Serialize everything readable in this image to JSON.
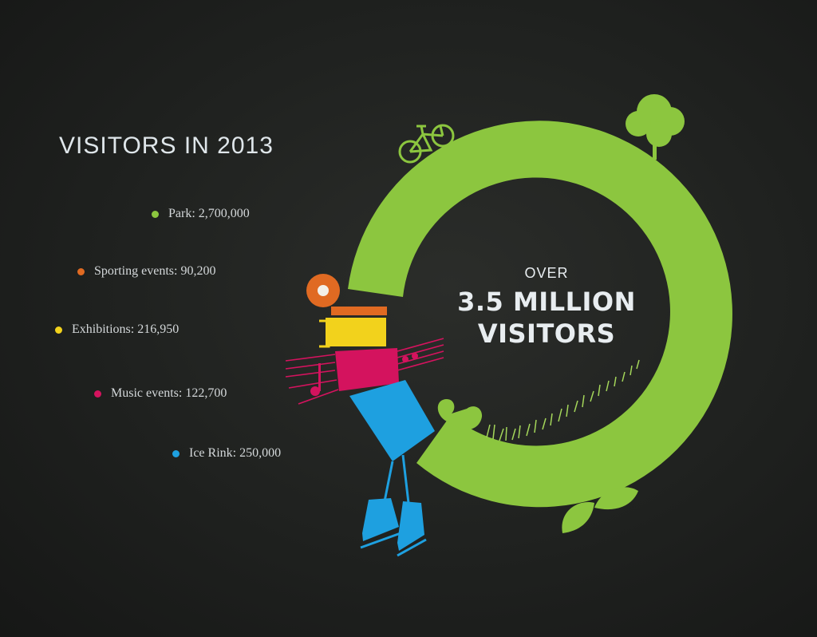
{
  "chart_data": {
    "type": "infographic",
    "title": "VISITORS IN 2013",
    "categories": [
      "Park",
      "Sporting events",
      "Exhibitions",
      "Music events",
      "Ice Rink"
    ],
    "values": [
      2700000,
      90200,
      216950,
      122700,
      250000
    ],
    "legend": [
      {
        "label": "Park: 2,700,000",
        "color": "#8cc63f"
      },
      {
        "label": "Sporting events: 90,200",
        "color": "#e06a22"
      },
      {
        "label": "Exhibitions: 216,950",
        "color": "#f2d21c"
      },
      {
        "label": "Music events: 122,700",
        "color": "#d4135e"
      },
      {
        "label": "Ice Rink: 250,000",
        "color": "#1ea0e0"
      }
    ],
    "center_text": {
      "line1": "OVER",
      "line2": "3.5 MILLION",
      "line3": "VISITORS"
    },
    "background": "#1f211f"
  }
}
